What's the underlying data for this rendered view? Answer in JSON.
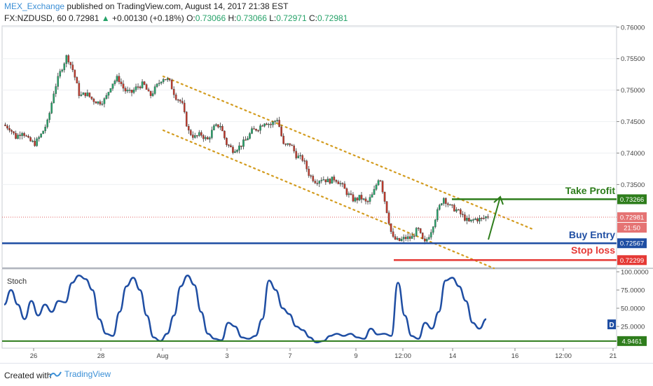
{
  "header": {
    "author": "MEX_Exchange",
    "published_text": "published on TradingView.com, August 14, 2017 21:38 EST",
    "symbol_tf": "FX:NZDUSD, 60",
    "last": "0.72981",
    "arrow": "▲",
    "change": "+0.00130 (+0.18%)",
    "o_label": "O:",
    "o": "0.73066",
    "h_label": "H:",
    "h": "0.73066",
    "l_label": "L:",
    "l": "0.72971",
    "c_label": "C:",
    "c": "0.72981"
  },
  "price_axis": {
    "ticks": [
      "0.76000",
      "0.75500",
      "0.75000",
      "0.74500",
      "0.74000",
      "0.73500"
    ],
    "badges": {
      "take_profit": "0.73266",
      "last": "0.72981",
      "countdown": "21:50",
      "buy_entry": "0.72567",
      "stop_loss": "0.72299"
    }
  },
  "annotations": {
    "take_profit": "Take Profit",
    "buy_entry": "Buy Entry",
    "stop_loss": "Stop loss"
  },
  "stoch": {
    "title": "Stoch",
    "ticks": [
      "100.0000",
      "75.0000",
      "50.0000",
      "25.0000"
    ],
    "level_badge": "4.9461",
    "d_tag": "D"
  },
  "time_axis": {
    "labels": [
      "26",
      "28",
      "Aug",
      "3",
      "7",
      "9",
      "12:00",
      "14",
      "16",
      "12:00",
      "21"
    ]
  },
  "footer": {
    "created_with": "Created with",
    "brand": "TradingView"
  },
  "colors": {
    "bull": "#26a269",
    "bear": "#c0392b",
    "take_profit": "#2e7d1c",
    "buy_entry": "#1f4ea3",
    "stop_loss": "#e53935",
    "channel": "#d39c1f",
    "stoch_line": "#1f4ea3"
  },
  "chart_data": {
    "type": "candlestick",
    "symbol": "FX:NZDUSD",
    "timeframe": "60",
    "x_labels": [
      "26",
      "28",
      "Aug",
      "3",
      "7",
      "9",
      "12:00",
      "14",
      "16",
      "12:00",
      "21"
    ],
    "ylim": [
      0.7218,
      0.7602
    ],
    "levels": {
      "take_profit": 0.73266,
      "last": 0.72981,
      "buy_entry": 0.72567,
      "stop_loss": 0.72299
    },
    "price_path": [
      0.7445,
      0.744,
      0.7425,
      0.7435,
      0.742,
      0.7415,
      0.743,
      0.745,
      0.75,
      0.753,
      0.7555,
      0.753,
      0.749,
      0.7495,
      0.7485,
      0.748,
      0.7485,
      0.751,
      0.752,
      0.75,
      0.7495,
      0.7505,
      0.751,
      0.749,
      0.7505,
      0.752,
      0.7515,
      0.749,
      0.748,
      0.7435,
      0.7425,
      0.743,
      0.742,
      0.744,
      0.7445,
      0.7415,
      0.7405,
      0.741,
      0.742,
      0.7435,
      0.744,
      0.745,
      0.7445,
      0.7455,
      0.741,
      0.7415,
      0.7395,
      0.739,
      0.7365,
      0.7355,
      0.736,
      0.7355,
      0.736,
      0.735,
      0.7335,
      0.7325,
      0.733,
      0.732,
      0.7335,
      0.7365,
      0.7315,
      0.7265,
      0.726,
      0.7265,
      0.7265,
      0.728,
      0.7255,
      0.7275,
      0.7305,
      0.733,
      0.7315,
      0.731,
      0.73,
      0.729,
      0.7295,
      0.7295,
      0.73
    ],
    "stochastic": {
      "ylim": [
        0,
        100
      ],
      "values": [
        55,
        75,
        55,
        35,
        60,
        40,
        55,
        45,
        60,
        58,
        85,
        95,
        90,
        75,
        35,
        15,
        12,
        45,
        80,
        92,
        75,
        40,
        10,
        5,
        15,
        40,
        80,
        95,
        82,
        45,
        15,
        8,
        6,
        30,
        25,
        10,
        8,
        12,
        35,
        88,
        75,
        50,
        42,
        25,
        20,
        10,
        3,
        5,
        12,
        15,
        12,
        15,
        10,
        8,
        22,
        14,
        15,
        12,
        85,
        40,
        12,
        8,
        30,
        22,
        45,
        88,
        92,
        80,
        60,
        30,
        22,
        35
      ],
      "level": 4.9461
    }
  }
}
